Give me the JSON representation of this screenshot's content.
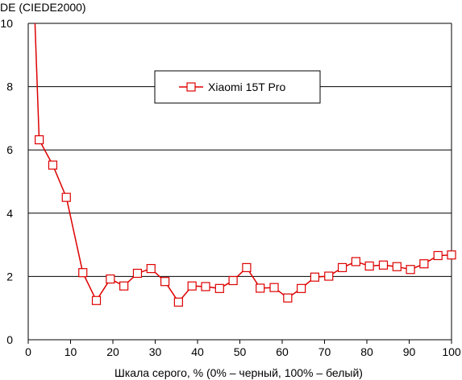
{
  "chart_data": {
    "type": "line",
    "title": "",
    "xlabel": "Шкала серого, % (0% – черный, 100% – белый)",
    "ylabel": "DE (CIEDE2000)",
    "xlim": [
      0,
      100
    ],
    "ylim": [
      0,
      10
    ],
    "xticks": [
      0,
      10,
      20,
      30,
      40,
      50,
      60,
      70,
      80,
      90,
      100
    ],
    "yticks": [
      0,
      2,
      4,
      6,
      8,
      10
    ],
    "grid": "horizontal",
    "legend_position": "top-center",
    "colors": {
      "series": "#dd0000",
      "grid": "#000000",
      "background": "#ffffff"
    },
    "series": [
      {
        "name": "Xiaomi 15T Pro",
        "line_only": {
          "x": [
            1.6,
            2.6
          ],
          "y": [
            10.0,
            6.3
          ]
        },
        "x": [
          2.6,
          5.8,
          9.0,
          12.9,
          16.1,
          19.4,
          22.6,
          25.8,
          29.0,
          32.3,
          35.5,
          38.7,
          41.9,
          45.2,
          48.4,
          51.6,
          54.8,
          58.1,
          61.3,
          64.5,
          67.7,
          71.0,
          74.2,
          77.4,
          80.6,
          83.9,
          87.1,
          90.3,
          93.5,
          96.8,
          100.0
        ],
        "y": [
          6.32,
          5.52,
          4.5,
          2.12,
          1.24,
          1.92,
          1.7,
          2.1,
          2.25,
          1.84,
          1.19,
          1.7,
          1.68,
          1.62,
          1.87,
          2.28,
          1.63,
          1.65,
          1.32,
          1.62,
          1.98,
          2.01,
          2.28,
          2.47,
          2.33,
          2.36,
          2.31,
          2.22,
          2.4,
          2.66,
          2.68
        ]
      }
    ]
  }
}
